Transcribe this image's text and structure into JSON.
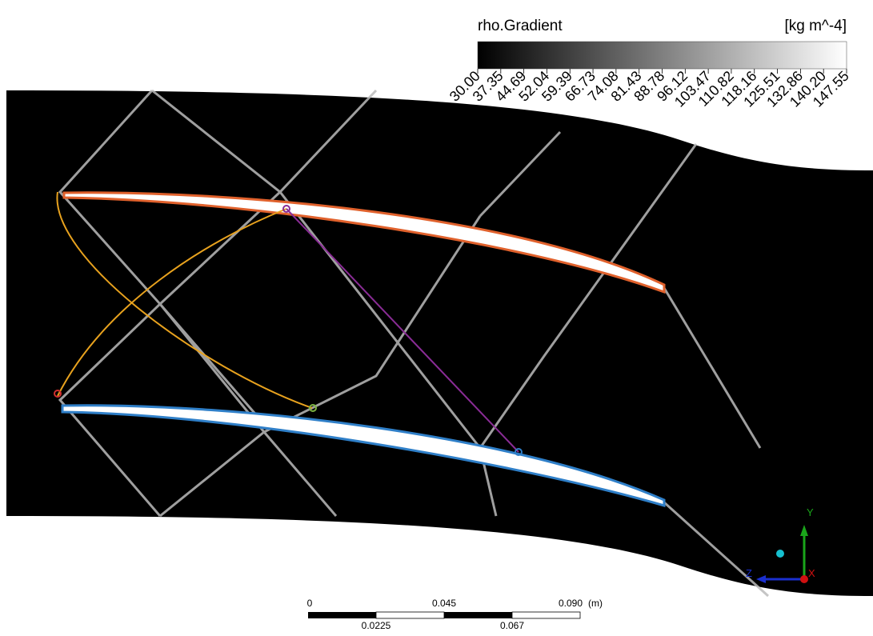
{
  "legend": {
    "title": "rho.Gradient",
    "unit": "[kg m^-4]",
    "ticks": [
      "30.00",
      "37.35",
      "44.69",
      "52.04",
      "59.39",
      "66.73",
      "74.08",
      "81.43",
      "88.78",
      "96.12",
      "103.47",
      "110.82",
      "118.16",
      "125.51",
      "132.86",
      "140.20",
      "147.55"
    ]
  },
  "scale_bar": {
    "top_labels": [
      "0",
      "0.045",
      "0.090"
    ],
    "unit": "(m)",
    "bottom_labels": [
      "0.0225",
      "0.067"
    ]
  },
  "axes": {
    "y": "Y",
    "z": "Z",
    "x": "X"
  }
}
